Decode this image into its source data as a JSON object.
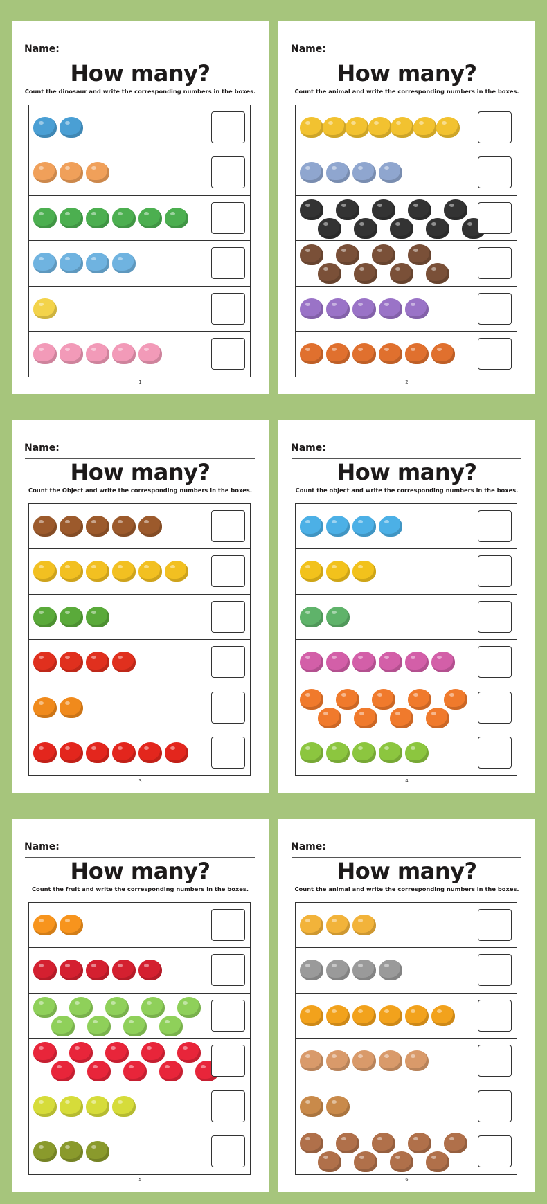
{
  "pages": [
    {
      "name_label": "Name:",
      "title": "How many?",
      "subtitle": "Count the dinosaur and write the corresponding numbers in the boxes.",
      "page_number": "1",
      "rows": [
        {
          "icon": "blue-trex",
          "count": 2,
          "color": "#4a9fd4"
        },
        {
          "icon": "orange-triceratops",
          "count": 3,
          "color": "#f0a05a"
        },
        {
          "icon": "green-dinosaur",
          "count": 6,
          "color": "#4caf50"
        },
        {
          "icon": "blue-dinosaur",
          "count": 4,
          "color": "#6fb3e0"
        },
        {
          "icon": "yellow-stegosaurus",
          "count": 1,
          "color": "#f3d34a"
        },
        {
          "icon": "pink-dinosaur",
          "count": 5,
          "color": "#f29ab8"
        }
      ]
    },
    {
      "name_label": "Name:",
      "title": "How many?",
      "subtitle": "Count the animal and write the corresponding numbers in the boxes.",
      "page_number": "2",
      "rows": [
        {
          "icon": "leopard",
          "count": 7,
          "color": "#f2c230"
        },
        {
          "icon": "elephant",
          "count": 4,
          "color": "#8fa6cf"
        },
        {
          "icon": "panda",
          "count": 10,
          "color": "#333333"
        },
        {
          "icon": "bear",
          "count": 8,
          "color": "#7a5038"
        },
        {
          "icon": "purple-cat",
          "count": 5,
          "color": "#9a73c7"
        },
        {
          "icon": "lion",
          "count": 6,
          "color": "#e0702e"
        }
      ]
    },
    {
      "name_label": "Name:",
      "title": "How many?",
      "subtitle": "Count the Object and write the corresponding numbers in the boxes.",
      "page_number": "3",
      "rows": [
        {
          "icon": "mushroom",
          "count": 5,
          "color": "#9c5a2c"
        },
        {
          "icon": "corn",
          "count": 6,
          "color": "#f2c021"
        },
        {
          "icon": "cabbage",
          "count": 3,
          "color": "#5aaa3a"
        },
        {
          "icon": "bell-pepper",
          "count": 4,
          "color": "#e0301e"
        },
        {
          "icon": "pumpkin",
          "count": 2,
          "color": "#f08a1c"
        },
        {
          "icon": "tomato",
          "count": 6,
          "color": "#e3261d"
        }
      ]
    },
    {
      "name_label": "Name:",
      "title": "How many?",
      "subtitle": "Count the object and write the corresponding numbers in the boxes.",
      "page_number": "4",
      "rows": [
        {
          "icon": "helicopter",
          "count": 4,
          "color": "#4cb0e6"
        },
        {
          "icon": "scooter",
          "count": 3,
          "color": "#f2c21c"
        },
        {
          "icon": "airplane",
          "count": 2,
          "color": "#5fb36a"
        },
        {
          "icon": "pink-car",
          "count": 6,
          "color": "#d35fa8"
        },
        {
          "icon": "road-roller",
          "count": 9,
          "color": "#f07a2c"
        },
        {
          "icon": "green-car",
          "count": 5,
          "color": "#8cc63f"
        }
      ]
    },
    {
      "name_label": "Name:",
      "title": "How many?",
      "subtitle": "Count the fruit and write the corresponding numbers in the boxes.",
      "page_number": "5",
      "rows": [
        {
          "icon": "orange",
          "count": 2,
          "color": "#f7941d"
        },
        {
          "icon": "pomegranate",
          "count": 5,
          "color": "#d42030"
        },
        {
          "icon": "green-apple",
          "count": 9,
          "color": "#8fd05a"
        },
        {
          "icon": "strawberry",
          "count": 10,
          "color": "#e8253a"
        },
        {
          "icon": "pear",
          "count": 4,
          "color": "#d6dc3a"
        },
        {
          "icon": "kiwi",
          "count": 3,
          "color": "#8a9a2c"
        }
      ]
    },
    {
      "name_label": "Name:",
      "title": "How many?",
      "subtitle": "Count the animal and write the corresponding numbers in the boxes.",
      "page_number": "6",
      "rows": [
        {
          "icon": "giraffe",
          "count": 3,
          "color": "#f2b33a"
        },
        {
          "icon": "elephant",
          "count": 4,
          "color": "#9a9a9a"
        },
        {
          "icon": "lion",
          "count": 6,
          "color": "#f2a21c"
        },
        {
          "icon": "bear",
          "count": 5,
          "color": "#d99a6a"
        },
        {
          "icon": "deer",
          "count": 2,
          "color": "#c98a4a"
        },
        {
          "icon": "monkey",
          "count": 9,
          "color": "#b0704a"
        }
      ]
    }
  ]
}
